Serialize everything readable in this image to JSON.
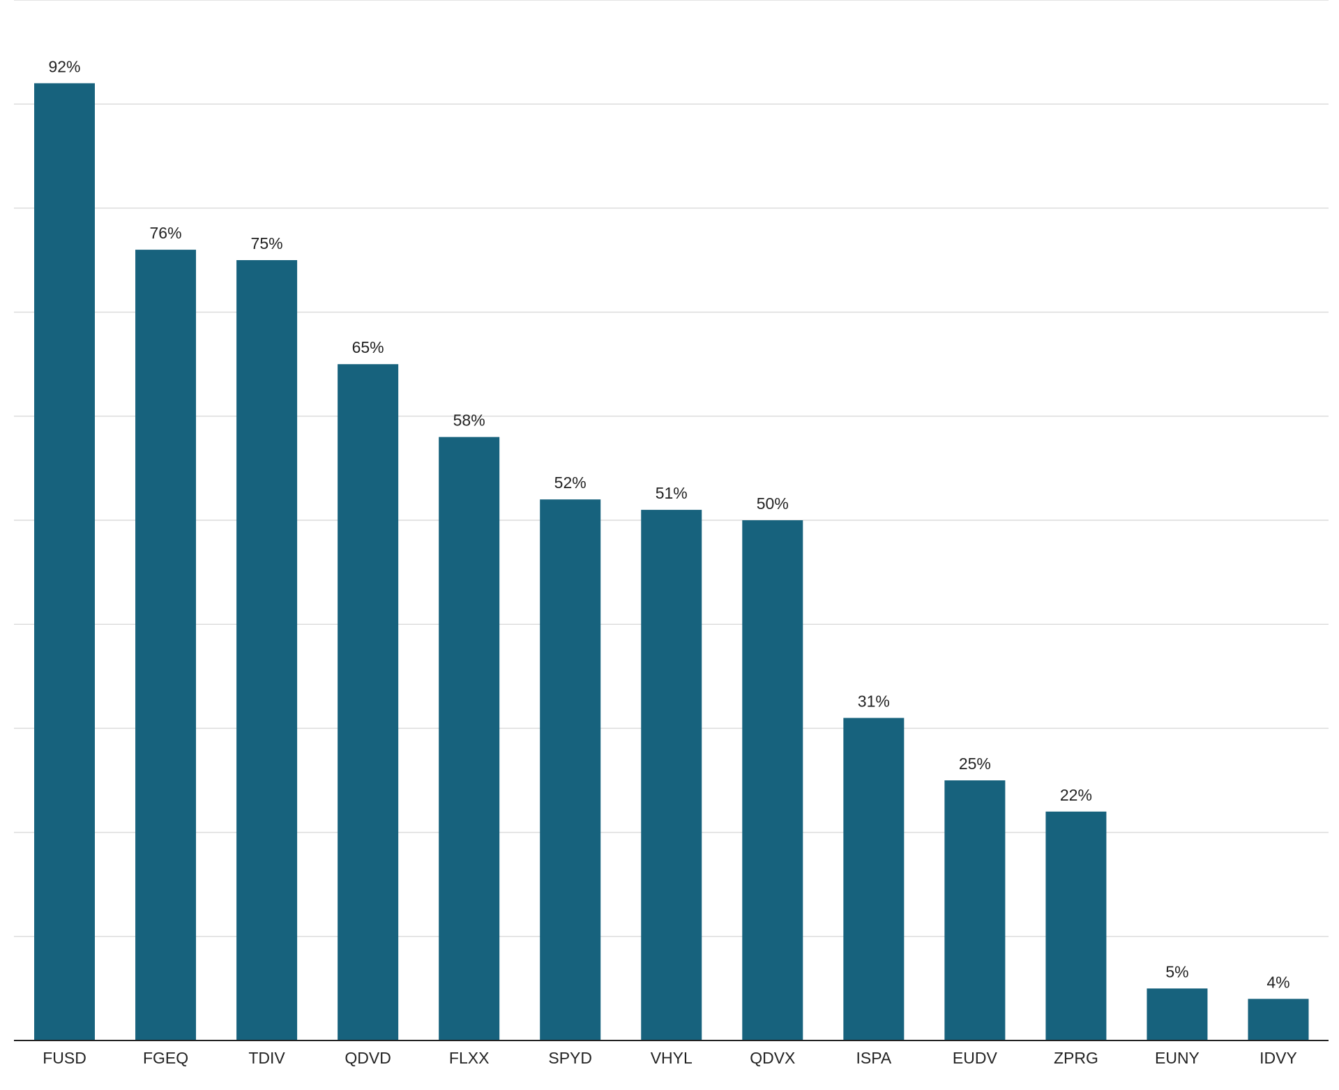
{
  "chart_data": {
    "type": "bar",
    "categories": [
      "FUSD",
      "FGEQ",
      "TDIV",
      "QDVD",
      "FLXX",
      "SPYD",
      "VHYL",
      "QDVX",
      "ISPA",
      "EUDV",
      "ZPRG",
      "EUNY",
      "IDVY"
    ],
    "values": [
      92,
      76,
      75,
      65,
      58,
      52,
      51,
      50,
      31,
      25,
      22,
      5,
      4
    ],
    "labels": [
      "92%",
      "76%",
      "75%",
      "65%",
      "58%",
      "52%",
      "51%",
      "50%",
      "31%",
      "25%",
      "22%",
      "5%",
      "4%"
    ],
    "title": "",
    "xlabel": "",
    "ylabel": "",
    "ylim": [
      0,
      100
    ],
    "grid": true,
    "y_gridline_step": 10,
    "bar_color": "#17627d",
    "gridline_color": "#dcdcdc",
    "baseline_color": "#222222",
    "legend": "none"
  }
}
